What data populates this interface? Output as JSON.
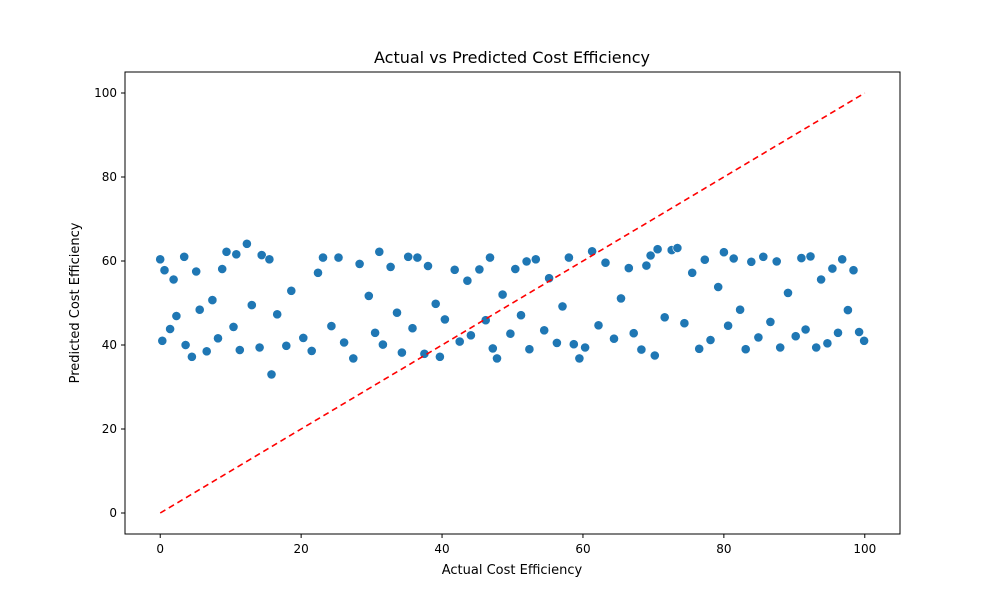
{
  "chart_data": {
    "type": "scatter",
    "title": "Actual vs Predicted Cost Efficiency",
    "xlabel": "Actual Cost Efficiency",
    "ylabel": "Predicted Cost Efficiency",
    "xlim": [
      -5,
      105
    ],
    "ylim": [
      -5,
      105
    ],
    "xticks": [
      0,
      20,
      40,
      60,
      80,
      100
    ],
    "yticks": [
      0,
      20,
      40,
      60,
      80,
      100
    ],
    "grid": false,
    "colors": {
      "points": "#1f77b4",
      "reference_line": "#ff0000"
    },
    "reference_line": {
      "x": [
        0,
        100
      ],
      "y": [
        0,
        100
      ],
      "style": "dashed"
    },
    "series": [
      {
        "values": [
          [
            0.0,
            60.4
          ],
          [
            0.3,
            41.0
          ],
          [
            0.6,
            57.8
          ],
          [
            1.4,
            43.8
          ],
          [
            1.9,
            55.6
          ],
          [
            2.3,
            46.9
          ],
          [
            3.4,
            61.0
          ],
          [
            3.6,
            40.0
          ],
          [
            4.5,
            37.2
          ],
          [
            5.1,
            57.5
          ],
          [
            5.6,
            48.4
          ],
          [
            6.6,
            38.5
          ],
          [
            7.4,
            50.7
          ],
          [
            8.2,
            41.6
          ],
          [
            8.8,
            58.1
          ],
          [
            9.4,
            62.2
          ],
          [
            10.4,
            44.3
          ],
          [
            10.8,
            61.6
          ],
          [
            11.3,
            38.8
          ],
          [
            12.3,
            64.1
          ],
          [
            13.0,
            49.5
          ],
          [
            14.1,
            39.4
          ],
          [
            14.4,
            61.4
          ],
          [
            15.5,
            60.4
          ],
          [
            15.8,
            33.0
          ],
          [
            16.6,
            47.3
          ],
          [
            17.9,
            39.8
          ],
          [
            18.6,
            52.9
          ],
          [
            20.3,
            41.7
          ],
          [
            21.5,
            38.6
          ],
          [
            22.4,
            57.2
          ],
          [
            23.1,
            60.8
          ],
          [
            24.3,
            44.5
          ],
          [
            25.3,
            60.8
          ],
          [
            26.1,
            40.6
          ],
          [
            27.4,
            36.8
          ],
          [
            28.3,
            59.3
          ],
          [
            29.6,
            51.7
          ],
          [
            30.5,
            42.9
          ],
          [
            31.1,
            62.2
          ],
          [
            31.6,
            40.1
          ],
          [
            32.7,
            58.6
          ],
          [
            33.6,
            47.7
          ],
          [
            34.3,
            38.2
          ],
          [
            35.2,
            61.0
          ],
          [
            35.8,
            44.0
          ],
          [
            36.5,
            60.8
          ],
          [
            37.5,
            37.9
          ],
          [
            38.0,
            58.8
          ],
          [
            39.1,
            49.8
          ],
          [
            39.7,
            37.2
          ],
          [
            40.4,
            46.1
          ],
          [
            41.8,
            57.9
          ],
          [
            42.5,
            40.8
          ],
          [
            43.6,
            55.3
          ],
          [
            44.1,
            42.3
          ],
          [
            45.3,
            58.0
          ],
          [
            46.2,
            45.9
          ],
          [
            46.8,
            60.8
          ],
          [
            47.2,
            39.2
          ],
          [
            47.8,
            36.8
          ],
          [
            48.6,
            52.0
          ],
          [
            49.7,
            42.7
          ],
          [
            50.4,
            58.1
          ],
          [
            51.2,
            47.1
          ],
          [
            52.0,
            59.9
          ],
          [
            52.4,
            39.0
          ],
          [
            53.3,
            60.4
          ],
          [
            54.5,
            43.5
          ],
          [
            55.2,
            55.9
          ],
          [
            56.3,
            40.5
          ],
          [
            57.1,
            49.2
          ],
          [
            58.0,
            60.8
          ],
          [
            58.7,
            40.2
          ],
          [
            59.5,
            36.8
          ],
          [
            60.3,
            39.4
          ],
          [
            61.3,
            62.3
          ],
          [
            62.2,
            44.7
          ],
          [
            63.2,
            59.6
          ],
          [
            64.4,
            41.5
          ],
          [
            65.4,
            51.1
          ],
          [
            66.5,
            58.3
          ],
          [
            67.2,
            42.8
          ],
          [
            68.3,
            38.9
          ],
          [
            69.0,
            58.9
          ],
          [
            69.6,
            61.3
          ],
          [
            70.2,
            37.5
          ],
          [
            70.6,
            62.8
          ],
          [
            71.6,
            46.6
          ],
          [
            72.6,
            62.6
          ],
          [
            73.4,
            63.1
          ],
          [
            74.4,
            45.2
          ],
          [
            75.5,
            57.2
          ],
          [
            76.5,
            39.1
          ],
          [
            77.3,
            60.3
          ],
          [
            78.1,
            41.2
          ],
          [
            79.2,
            53.8
          ],
          [
            80.0,
            62.1
          ],
          [
            80.6,
            44.6
          ],
          [
            81.4,
            60.6
          ],
          [
            82.3,
            48.4
          ],
          [
            83.1,
            39.0
          ],
          [
            83.9,
            59.8
          ],
          [
            84.9,
            41.8
          ],
          [
            85.6,
            61.0
          ],
          [
            86.6,
            45.5
          ],
          [
            87.5,
            59.9
          ],
          [
            88.0,
            39.4
          ],
          [
            89.1,
            52.4
          ],
          [
            90.2,
            42.1
          ],
          [
            91.0,
            60.7
          ],
          [
            91.6,
            43.7
          ],
          [
            92.3,
            61.1
          ],
          [
            93.1,
            39.4
          ],
          [
            93.8,
            55.6
          ],
          [
            94.7,
            40.4
          ],
          [
            95.4,
            58.2
          ],
          [
            96.2,
            42.9
          ],
          [
            96.8,
            60.4
          ],
          [
            97.6,
            48.3
          ],
          [
            98.4,
            57.8
          ],
          [
            99.2,
            43.1
          ],
          [
            99.9,
            41.0
          ]
        ]
      }
    ]
  }
}
